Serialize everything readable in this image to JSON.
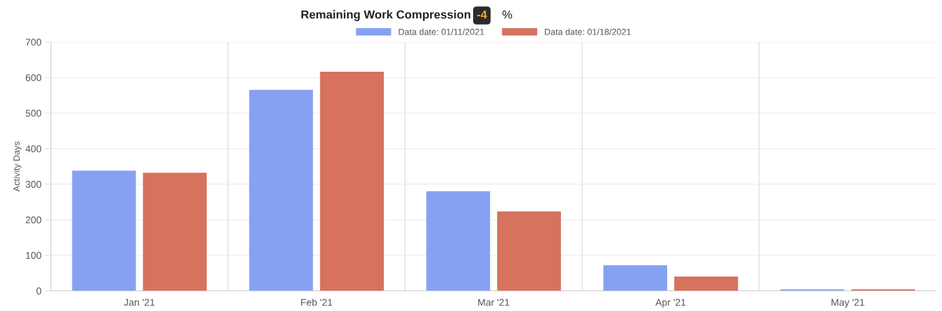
{
  "chart_data": {
    "type": "bar",
    "title": "Remaining Work Compression",
    "annotations": [
      "-4",
      "%"
    ],
    "ylabel": "Activity Days",
    "categories": [
      "Jan '21",
      "Feb '21",
      "Mar '21",
      "Apr '21",
      "May '21"
    ],
    "series": [
      {
        "name": "Data date: 01/11/2021",
        "color": "#86a1f2",
        "values": [
          338,
          565,
          280,
          72,
          4
        ]
      },
      {
        "name": "Data date: 01/18/2021",
        "color": "#d6725d",
        "values": [
          332,
          616,
          223,
          40,
          4
        ]
      }
    ],
    "ylim": [
      0,
      700
    ],
    "yticks": [
      0,
      100,
      200,
      300,
      400,
      500,
      600,
      700
    ],
    "grid": true,
    "legend": "top"
  }
}
